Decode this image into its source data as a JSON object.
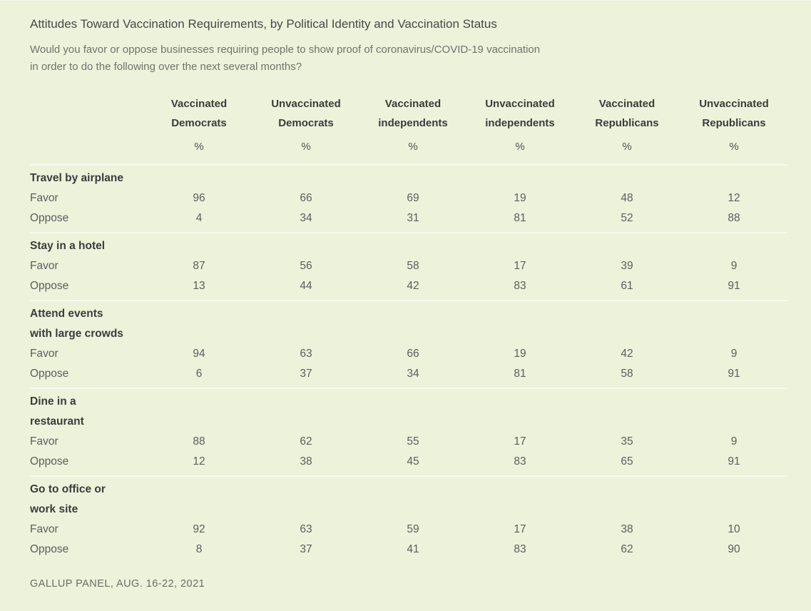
{
  "page": {
    "title": "Attitudes Toward Vaccination Requirements, by Political Identity and Vaccination Status",
    "subtitle": "Would you favor or oppose businesses requiring people to show proof of coronavirus/COVID-19 vaccination in order to do the following over the next several months?",
    "subtitle_lines": [
      "Would you favor or oppose businesses requiring people to show proof of coronavirus/COVID-19 vaccination",
      "in order to do the following over the next several months?"
    ],
    "source": "GALLUP PANEL, AUG. 16-22, 2021"
  },
  "colors": {
    "background": "#edf2db",
    "divider": "#fafbef",
    "heading_text": "#3b3c3c",
    "body_text": "#5c5d5d",
    "muted_text": "#72726e"
  },
  "chart_data": {
    "type": "table",
    "title": "Attitudes Toward Vaccination Requirements, by Political Identity and Vaccination Status",
    "subtitle": "Would you favor or oppose businesses requiring people to show proof of coronavirus/COVID-19 vaccination in order to do the following over the next several months?",
    "unit": "%",
    "columns": [
      "Vaccinated Democrats",
      "Unvaccinated Democrats",
      "Vaccinated independents",
      "Unvaccinated independents",
      "Vaccinated Republicans",
      "Unvaccinated Republicans"
    ],
    "sections": [
      {
        "activity": "Travel by airplane",
        "activity_lines": [
          "Travel by airplane"
        ],
        "rows": [
          {
            "label": "Favor",
            "values": [
              96,
              66,
              69,
              19,
              48,
              12
            ]
          },
          {
            "label": "Oppose",
            "values": [
              4,
              34,
              31,
              81,
              52,
              88
            ]
          }
        ]
      },
      {
        "activity": "Stay in a hotel",
        "activity_lines": [
          "Stay in a hotel"
        ],
        "rows": [
          {
            "label": "Favor",
            "values": [
              87,
              56,
              58,
              17,
              39,
              9
            ]
          },
          {
            "label": "Oppose",
            "values": [
              13,
              44,
              42,
              83,
              61,
              91
            ]
          }
        ]
      },
      {
        "activity": "Attend events with large crowds",
        "activity_lines": [
          "Attend events",
          "with large crowds"
        ],
        "rows": [
          {
            "label": "Favor",
            "values": [
              94,
              63,
              66,
              19,
              42,
              9
            ]
          },
          {
            "label": "Oppose",
            "values": [
              6,
              37,
              34,
              81,
              58,
              91
            ]
          }
        ]
      },
      {
        "activity": "Dine in a restaurant",
        "activity_lines": [
          "Dine in a",
          "restaurant"
        ],
        "rows": [
          {
            "label": "Favor",
            "values": [
              88,
              62,
              55,
              17,
              35,
              9
            ]
          },
          {
            "label": "Oppose",
            "values": [
              12,
              38,
              45,
              83,
              65,
              91
            ]
          }
        ]
      },
      {
        "activity": "Go to office or work site",
        "activity_lines": [
          "Go to office or",
          "work site"
        ],
        "rows": [
          {
            "label": "Favor",
            "values": [
              92,
              63,
              59,
              17,
              38,
              10
            ]
          },
          {
            "label": "Oppose",
            "values": [
              8,
              37,
              41,
              83,
              62,
              90
            ]
          }
        ]
      }
    ],
    "source": "GALLUP PANEL, AUG. 16-22, 2021"
  }
}
